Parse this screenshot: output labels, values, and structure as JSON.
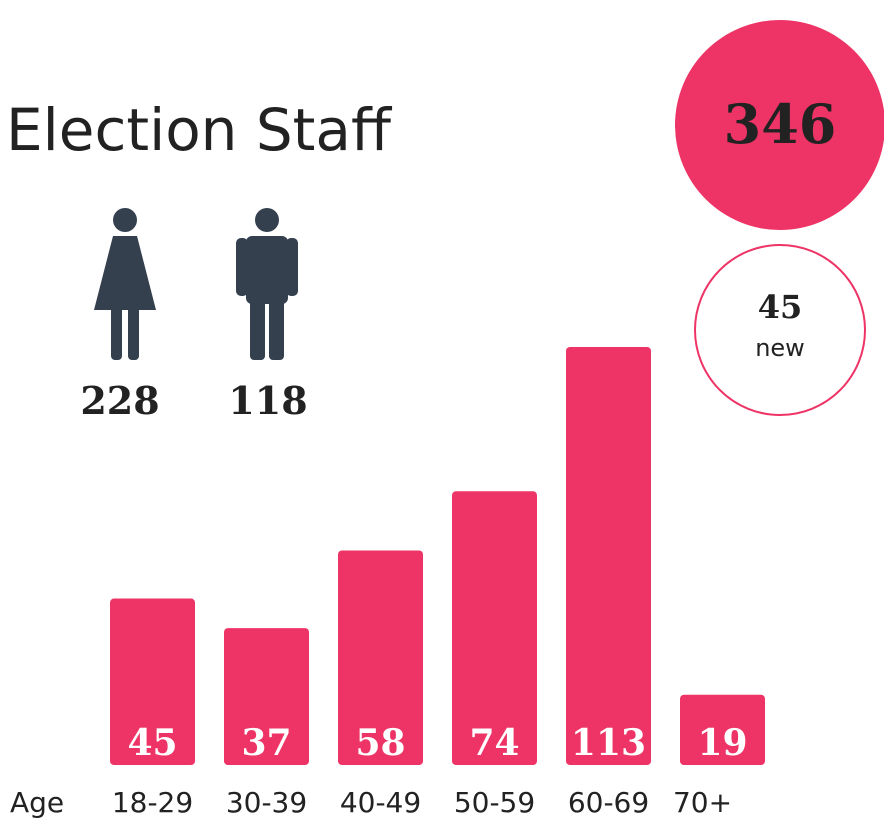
{
  "chart_data": {
    "type": "bar",
    "title": "Election Staff",
    "x_label": "Age",
    "categories": [
      "18-29",
      "30-39",
      "40-49",
      "50-59",
      "60-69",
      "70+"
    ],
    "values": [
      45,
      37,
      58,
      74,
      113,
      19
    ],
    "color": "#ee3466"
  },
  "stats": {
    "total": 346,
    "new": 45,
    "new_label": "new",
    "female": 228,
    "male": 118
  }
}
